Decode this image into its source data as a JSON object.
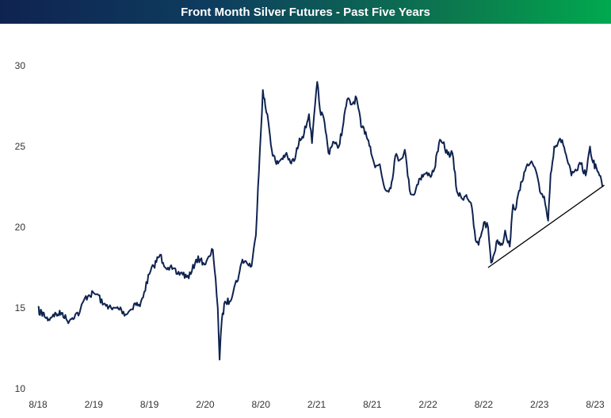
{
  "chart_data": {
    "type": "line",
    "title": "Front Month Silver Futures - Past Five Years",
    "xlabel": "",
    "ylabel": "",
    "ylim": [
      10,
      30
    ],
    "yticks": [
      10,
      15,
      20,
      25,
      30
    ],
    "xlim": [
      "2018-08",
      "2023-08"
    ],
    "xticks": [
      "8/18",
      "2/19",
      "8/19",
      "2/20",
      "8/20",
      "2/21",
      "8/21",
      "2/22",
      "8/22",
      "2/23",
      "8/23"
    ],
    "grid": false,
    "line_color": "#0f2350",
    "trendline": {
      "color": "#000000",
      "from": {
        "x": "2022-08-15",
        "y": 17.5
      },
      "to": {
        "x": "2023-08-31",
        "y": 22.6
      }
    },
    "series": [
      {
        "x": [
          "2018-08-01",
          "2018-08-05",
          "2018-08-10",
          "2018-08-15",
          "2018-08-20",
          "2018-08-25",
          "2018-09-05",
          "2018-09-20",
          "2018-10-05",
          "2018-10-20",
          "2018-11-05",
          "2018-11-15",
          "2018-12-01",
          "2018-12-15",
          "2019-01-01",
          "2019-01-15",
          "2019-02-01",
          "2019-02-15",
          "2019-03-01",
          "2019-03-15",
          "2019-04-01",
          "2019-04-15",
          "2019-05-01",
          "2019-05-15",
          "2019-06-01",
          "2019-06-15",
          "2019-07-01",
          "2019-07-15",
          "2019-08-01",
          "2019-08-15",
          "2019-09-05",
          "2019-09-15",
          "2019-10-01",
          "2019-10-15",
          "2019-11-01",
          "2019-11-15",
          "2019-12-01",
          "2019-12-15",
          "2020-01-01",
          "2020-01-15",
          "2020-02-01",
          "2020-02-15",
          "2020-02-25",
          "2020-03-05",
          "2020-03-12",
          "2020-03-18",
          "2020-03-25",
          "2020-04-05",
          "2020-04-20",
          "2020-05-05",
          "2020-05-20",
          "2020-06-01",
          "2020-06-15",
          "2020-07-01",
          "2020-07-15",
          "2020-07-22",
          "2020-07-28",
          "2020-08-07",
          "2020-08-15",
          "2020-08-25",
          "2020-09-05",
          "2020-09-20",
          "2020-10-05",
          "2020-10-20",
          "2020-11-05",
          "2020-11-20",
          "2020-12-05",
          "2020-12-20",
          "2021-01-05",
          "2021-01-15",
          "2021-02-01",
          "2021-02-10",
          "2021-02-25",
          "2021-03-10",
          "2021-03-25",
          "2021-04-10",
          "2021-04-25",
          "2021-05-10",
          "2021-05-25",
          "2021-06-10",
          "2021-06-25",
          "2021-07-10",
          "2021-07-25",
          "2021-08-10",
          "2021-08-25",
          "2021-09-10",
          "2021-09-30",
          "2021-10-15",
          "2021-11-01",
          "2021-11-15",
          "2021-12-01",
          "2021-12-15",
          "2022-01-01",
          "2022-01-20",
          "2022-02-05",
          "2022-02-20",
          "2022-03-07",
          "2022-03-20",
          "2022-04-05",
          "2022-04-20",
          "2022-05-05",
          "2022-05-20",
          "2022-06-05",
          "2022-06-20",
          "2022-07-05",
          "2022-07-15",
          "2022-08-01",
          "2022-08-15",
          "2022-08-25",
          "2022-09-01",
          "2022-09-15",
          "2022-09-30",
          "2022-10-10",
          "2022-10-25",
          "2022-11-05",
          "2022-11-15",
          "2022-12-01",
          "2022-12-15",
          "2023-01-01",
          "2023-01-15",
          "2023-02-01",
          "2023-02-15",
          "2023-02-28",
          "2023-03-08",
          "2023-03-20",
          "2023-04-01",
          "2023-04-15",
          "2023-05-01",
          "2023-05-15",
          "2023-06-01",
          "2023-06-15",
          "2023-07-01",
          "2023-07-15",
          "2023-07-25",
          "2023-08-05",
          "2023-08-15",
          "2023-08-25"
        ],
        "y": [
          15.1,
          14.6,
          14.9,
          14.5,
          14.7,
          14.4,
          14.3,
          14.6,
          14.6,
          14.7,
          14.2,
          14.3,
          14.6,
          14.7,
          15.6,
          15.8,
          15.9,
          15.8,
          15.2,
          15.2,
          14.9,
          15.0,
          14.9,
          14.6,
          14.9,
          15.3,
          15.1,
          16.0,
          17.1,
          17.6,
          18.3,
          17.8,
          17.5,
          17.4,
          17.1,
          17.2,
          16.9,
          17.1,
          18.0,
          18.0,
          17.7,
          18.2,
          18.6,
          16.8,
          15.0,
          11.8,
          14.2,
          15.4,
          15.4,
          16.3,
          17.0,
          18.0,
          17.8,
          17.6,
          19.5,
          22.5,
          24.7,
          28.5,
          27.5,
          26.5,
          24.8,
          23.9,
          24.2,
          24.5,
          24.0,
          24.2,
          25.5,
          25.8,
          27.0,
          25.2,
          29.0,
          27.3,
          26.5,
          24.6,
          25.3,
          24.9,
          26.1,
          27.9,
          27.6,
          28.0,
          26.2,
          25.9,
          25.0,
          23.7,
          23.9,
          22.4,
          22.4,
          24.4,
          24.2,
          24.8,
          22.3,
          22.0,
          23.0,
          23.3,
          23.2,
          23.6,
          25.2,
          25.2,
          24.5,
          24.6,
          22.2,
          21.8,
          22.0,
          21.5,
          19.2,
          18.9,
          20.3,
          20.0,
          17.8,
          18.2,
          19.2,
          18.9,
          19.8,
          18.8,
          21.4,
          21.2,
          22.8,
          23.5,
          24.0,
          23.7,
          22.2,
          21.9,
          20.4,
          23.3,
          25.0,
          25.2,
          25.4,
          24.2,
          23.2,
          23.5,
          23.9,
          23.2,
          25.0,
          24.0,
          23.7,
          23.2,
          22.5
        ]
      }
    ]
  }
}
